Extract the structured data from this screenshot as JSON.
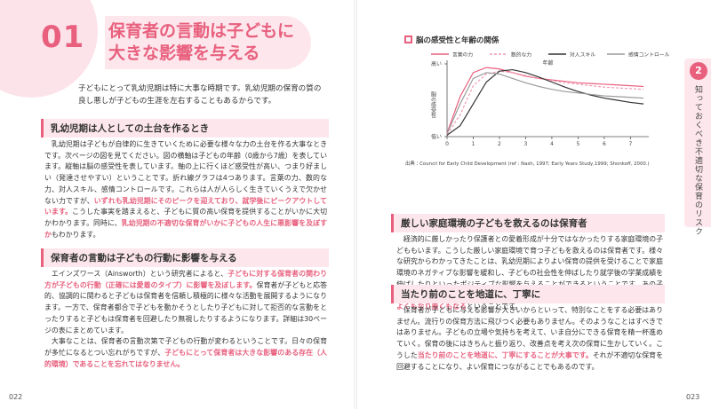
{
  "left": {
    "number": "01",
    "title": [
      "保育者の言動は子どもに",
      "大きな影響を与える"
    ],
    "intro": "子どもにとって乳幼児期は特に大事な時期です。乳幼児期の保育の質の良し悪しが子どもの生涯を左右することもあるからです。",
    "sections": [
      {
        "heading": "乳幼児期は人としての土台を作るとき",
        "paragraphs": [
          [
            {
              "text": "乳幼児期は子どもが自律的に生きていくために必要な様々な力の土台を作る大事なときです。次ページの図を見てください。図の横軸は子どもの年齢（0歳から7歳）を表しています。縦軸は脳の感受性を表しています。軸の上に行くほど感受性が高い、つまり好ましい（発達させやすい）ということです。折れ線グラフは4つあります。言葉の力、数的な力、対人スキル、感情コントロールです。これらは人が人らしく生きていくうえで欠かせない力ですが、",
              "highlight": false
            },
            {
              "text": "いずれも乳幼児期にそのピークを迎えており、就学後にピークアウトしています。",
              "highlight": true
            },
            {
              "text": "こうした事実を踏まえると、子どもに質の高い保育を提供することがいかに大切かわかります。同時に、",
              "highlight": false
            },
            {
              "text": "乳幼児期の不適切な保育がいかに子どもの人生に悪影響を及ぼすか",
              "highlight": true
            },
            {
              "text": "もわかります。",
              "highlight": false
            }
          ]
        ]
      },
      {
        "heading": "保育者の言動は子どもの行動に影響を与える",
        "paragraphs": [
          [
            {
              "text": "エインズワース（Ainsworth）という研究者によると、",
              "highlight": false
            },
            {
              "text": "子どもに対する保育者の関わり方が子どもの行動（正確には愛着のタイプ）に影響を及ぼします。",
              "highlight": true
            },
            {
              "text": "保育者が子どもと応答的、協調的に関わると子どもは保育者を信頼し積極的に様々な活動を展開するようになります。一方で、保育者都合で子どもを動かそうとしたり子どもに対して拒否的な言動をとったりすると子どもは保育者を回避したり無視したりするようになります。詳細は30ページの表にまとめています。",
              "highlight": false
            }
          ],
          [
            {
              "text": "大事なことは、保育者の言動次第で子どもの行動が変わるということです。日々の保育が多忙になるとつい忘れがちですが、",
              "highlight": false
            },
            {
              "text": "子どもにとって保育者は大きな影響のある存在（人的環境）であることを忘れてはなりません。",
              "highlight": true
            }
          ]
        ]
      }
    ],
    "page": "022"
  },
  "right": {
    "tab_number": "2",
    "tab_text": "知っておくべき不適切な保育のリスク",
    "sections": [
      {
        "heading": "厳しい家庭環境の子どもを救えるのは保育者",
        "paragraphs": [
          [
            {
              "text": "経済的に厳しかったり保護者との愛着形成が十分ではなかったりする家庭環境の子どももいます。こうした厳しい家庭環境で育つ子どもを救えるのは保育者です。様々な研究からわかってきたことは、乳幼児期によりよい保育の提供を受けることで家庭環境のネガティブな影響を緩和し、子どもの社会性を伸ばしたり就学後の学業成績を伸ばしたりといったポジティブな影響を与えることができるということです。あの子は家庭環境が厳しいから仕方がないというのではなく、",
              "highlight": false
            },
            {
              "text": "保育者次第で子どもの人生がよくもなり悪くもなる",
              "highlight": true
            },
            {
              "text": "ということです。",
              "highlight": false
            }
          ]
        ]
      },
      {
        "heading": "当たり前のことを地道に、丁寧に",
        "paragraphs": [
          [
            {
              "text": "保育者が子どもに与える影響が大きいからといって、特別なことをする必要はありません。流行りの保育方法に飛びつく必要もありません。そのようなことはすべきではありません。子どもの立場や気持ちを考えて、いま自分にできる保育を精一杯進めていく。保育の後にはきちんと振り返り、改善点を考え次の保育に生かしていく。こうした",
              "highlight": false
            },
            {
              "text": "当たり前のことを地道に、丁寧にすることが大事です。",
              "highlight": true
            },
            {
              "text": "それが不適切な保育を回避することになり、よい保育につながることでもあるのです。",
              "highlight": false
            }
          ]
        ]
      }
    ],
    "page": "023"
  },
  "chart_data": {
    "type": "line",
    "title": "脳の感受性と年齢の関係",
    "xlabel": "年齢",
    "ylabel": "脳の感受性",
    "source": "出典：Council for Early Child Development (ref : Nash, 1997; Early Years Study,1999; Shonkoff, 2000.)",
    "x": [
      0,
      0.5,
      1,
      1.5,
      2,
      2.5,
      3,
      3.5,
      4,
      4.5,
      5,
      5.5,
      6,
      6.5,
      7,
      7.5
    ],
    "xlim": [
      0,
      7.7
    ],
    "xticks": [
      0,
      1,
      2,
      3,
      4,
      5,
      6,
      7
    ],
    "ylim": [
      0,
      100
    ],
    "yticks": [
      {
        "value": 0,
        "label": "低い"
      },
      {
        "value": 100,
        "label": "高い"
      }
    ],
    "series": [
      {
        "name": "言葉の力",
        "color": "#e8607e",
        "dash": false,
        "values": [
          5,
          55,
          88,
          95,
          93,
          88,
          83,
          80,
          78,
          76,
          74,
          73,
          72,
          71,
          70,
          69
        ]
      },
      {
        "name": "数的な力",
        "color": "#f09cb1",
        "dash": true,
        "values": [
          3,
          30,
          70,
          86,
          90,
          88,
          84,
          80,
          77,
          74,
          72,
          70,
          68,
          67,
          66,
          65
        ]
      },
      {
        "name": "対人スキル",
        "color": "#333333",
        "dash": false,
        "values": [
          2,
          15,
          45,
          75,
          90,
          92,
          88,
          82,
          75,
          68,
          62,
          57,
          53,
          50,
          47,
          45
        ]
      },
      {
        "name": "感情コントロール",
        "color": "#9a9a9a",
        "dash": false,
        "values": [
          4,
          45,
          80,
          88,
          86,
          80,
          74,
          69,
          65,
          62,
          60,
          58,
          56,
          55,
          54,
          53
        ]
      }
    ]
  }
}
